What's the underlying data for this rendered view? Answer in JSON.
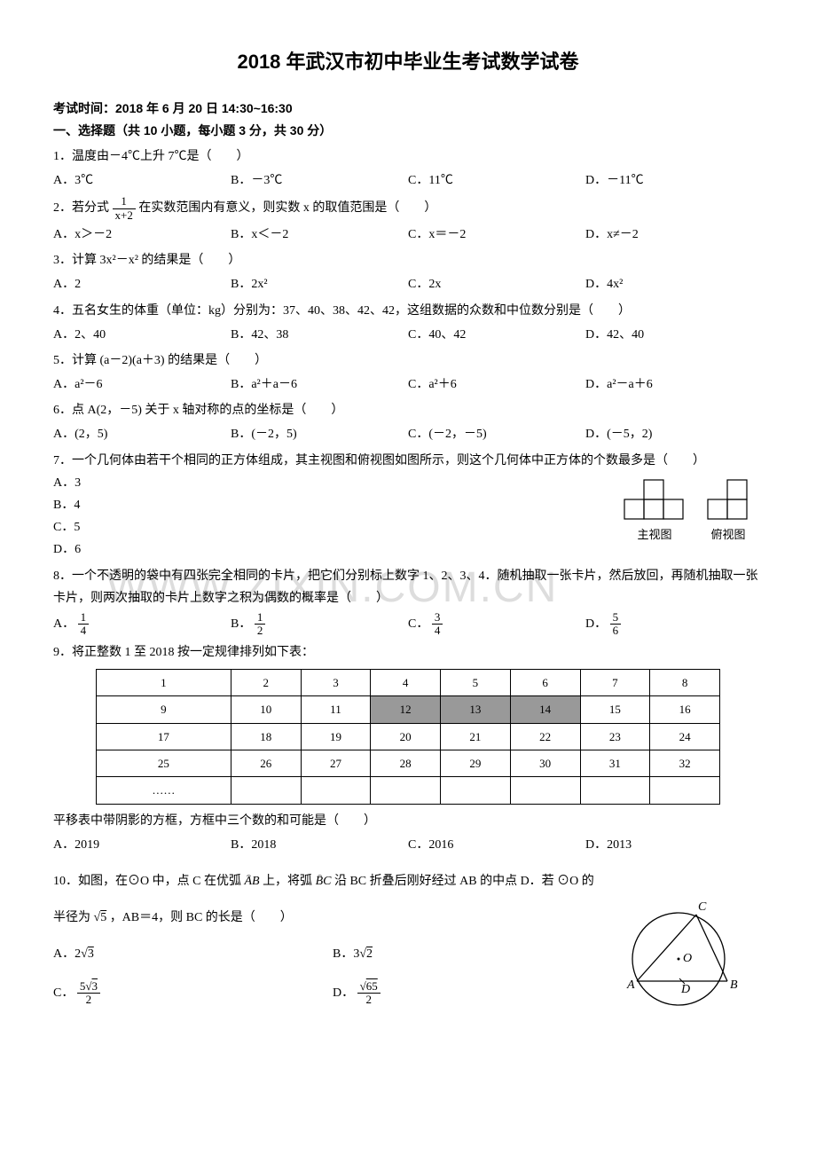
{
  "title": "2018 年武汉市初中毕业生考试数学试卷",
  "exam_time": "考试时间：2018 年 6 月 20 日 14:30~16:30",
  "section1": "一、选择题（共 10 小题，每小题 3 分，共 30 分）",
  "q1": {
    "text": "1．温度由－4℃上升 7℃是（　　）",
    "A": "A．3℃",
    "B": "B．－3℃",
    "C": "C．11℃",
    "D": "D．－11℃"
  },
  "q2": {
    "pre": "2．若分式",
    "post": "在实数范围内有意义，则实数 x 的取值范围是（　　）",
    "frac_num": "1",
    "frac_den": "x+2",
    "A": "A．x＞－2",
    "B": "B．x＜－2",
    "C": "C．x＝－2",
    "D": "D．x≠－2"
  },
  "q3": {
    "text": "3．计算 3x²－x² 的结果是（　　）",
    "A": "A．2",
    "B": "B．2x²",
    "C": "C．2x",
    "D": "D．4x²"
  },
  "q4": {
    "text": "4．五名女生的体重（单位：kg）分别为：37、40、38、42、42，这组数据的众数和中位数分别是（　　）",
    "A": "A．2、40",
    "B": "B．42、38",
    "C": "C．40、42",
    "D": "D．42、40"
  },
  "q5": {
    "text": "5．计算 (a－2)(a＋3) 的结果是（　　）",
    "A": "A．a²－6",
    "B": "B．a²＋a－6",
    "C": "C．a²＋6",
    "D": "D．a²－a＋6"
  },
  "q6": {
    "text": "6．点 A(2，－5) 关于 x 轴对称的点的坐标是（　　）",
    "A": "A．(2，5)",
    "B": "B．(－2，5)",
    "C": "C．(－2，－5)",
    "D": "D．(－5，2)"
  },
  "q7": {
    "text": "7．一个几何体由若干个相同的正方体组成，其主视图和俯视图如图所示，则这个几何体中正方体的个数最多是（　　）",
    "A": "A．3",
    "B": "B．4",
    "C": "C．5",
    "D": "D．6",
    "label_main": "主视图",
    "label_top": "俯视图"
  },
  "q8": {
    "text": "8．一个不透明的袋中有四张完全相同的卡片，把它们分别标上数字 1、2、3、4．随机抽取一张卡片，然后放回，再随机抽取一张卡片，则两次抽取的卡片上数字之积为偶数的概率是（　　）",
    "A": "A．",
    "An": "1",
    "Ad": "4",
    "B": "B．",
    "Bn": "1",
    "Bd": "2",
    "C": "C．",
    "Cn": "3",
    "Cd": "4",
    "D": "D．",
    "Dn": "5",
    "Dd": "6"
  },
  "q9": {
    "text": "9．将正整数 1 至 2018 按一定规律排列如下表：",
    "rows": [
      [
        "1",
        "2",
        "3",
        "4",
        "5",
        "6",
        "7",
        "8"
      ],
      [
        "9",
        "10",
        "11",
        "12",
        "13",
        "14",
        "15",
        "16"
      ],
      [
        "17",
        "18",
        "19",
        "20",
        "21",
        "22",
        "23",
        "24"
      ],
      [
        "25",
        "26",
        "27",
        "28",
        "29",
        "30",
        "31",
        "32"
      ],
      [
        "……",
        "",
        "",
        "",
        "",
        "",
        "",
        ""
      ]
    ],
    "shaded": [
      [
        1,
        3
      ],
      [
        1,
        4
      ],
      [
        1,
        5
      ]
    ],
    "after": "平移表中带阴影的方框，方框中三个数的和可能是（　　）",
    "A": "A．2019",
    "B": "B．2018",
    "C": "C．2016",
    "D": "D．2013"
  },
  "q10": {
    "line1_a": "10．如图，在⊙O 中，点 C 在优弧",
    "line1_b": "上，将弧",
    "line1_c": "沿 BC 折叠后刚好经过 AB 的中点 D．若 ⊙O 的",
    "arc1": "AB",
    "arc2": "BC",
    "line2_a": "半径为",
    "sqrt5": "5",
    "line2_b": "，AB＝4，则 BC 的长是（　　）",
    "A_pre": "A．2",
    "A_sqrt": "3",
    "B_pre": "B．3",
    "B_sqrt": "2",
    "C_pre": "C．",
    "C_num_pre": "5",
    "C_num_sqrt": "3",
    "C_den": "2",
    "D_pre": "D．",
    "D_num_sqrt": "65",
    "D_den": "2",
    "labels": {
      "C": "C",
      "O": "O",
      "A": "A",
      "D": "D",
      "B": "B"
    }
  },
  "watermark": "WWW.ZIXIN.COM.CN"
}
